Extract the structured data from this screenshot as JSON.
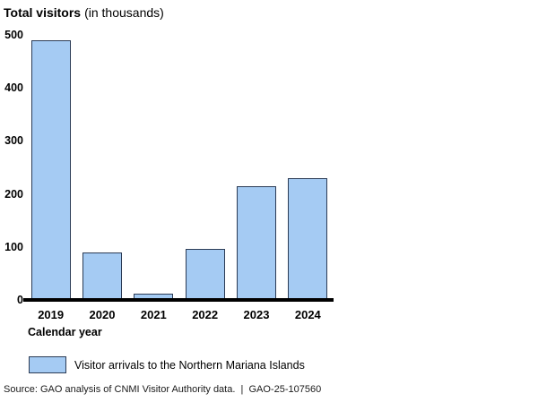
{
  "title": "Total visitors",
  "subtitle": "(in thousands)",
  "xaxis_title": "Calendar year",
  "legend": {
    "label": "Visitor arrivals to the Northern Mariana Islands"
  },
  "source": "Source: GAO analysis of CNMI Visitor Authority data.  |  GAO-25-107560",
  "colors": {
    "bar_fill": "#A5CBF3",
    "bar_border": "#2b3b55",
    "axis": "#000000",
    "text": "#000000",
    "background": "#ffffff"
  },
  "chart_data": {
    "type": "bar",
    "title": "Total visitors (in thousands)",
    "categories": [
      "2019",
      "2020",
      "2021",
      "2022",
      "2023",
      "2024"
    ],
    "values": [
      490,
      90,
      12,
      97,
      215,
      229
    ],
    "xlabel": "Calendar year",
    "ylabel": "Total visitors (in thousands)",
    "ylim": [
      0,
      500
    ],
    "yticks": [
      0,
      100,
      200,
      300,
      400,
      500
    ],
    "grid": false,
    "legend_entries": [
      "Visitor arrivals to the Northern Mariana Islands"
    ],
    "legend_position": "bottom-left"
  }
}
